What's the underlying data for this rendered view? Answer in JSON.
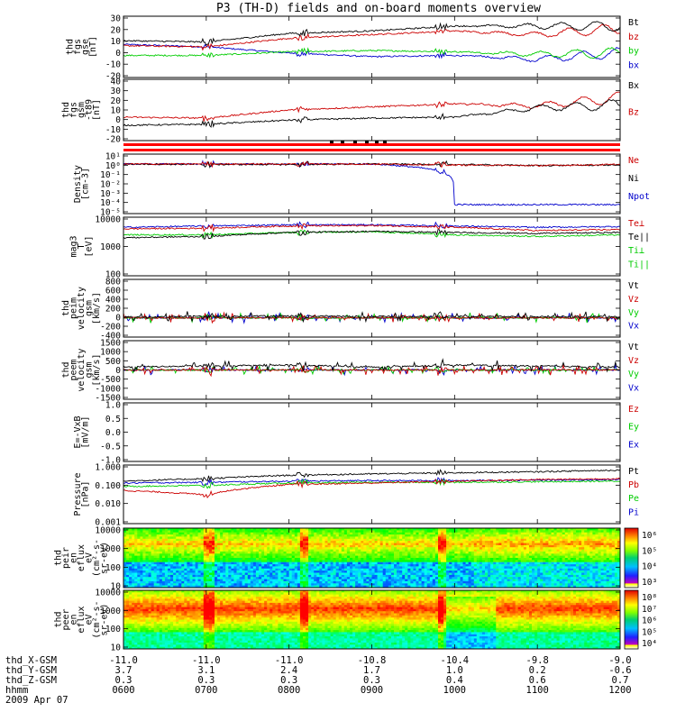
{
  "title": "P3 (TH-D) fields and on-board moments overview",
  "panels": [
    {
      "id": "fgs-gse",
      "ylabel": [
        "thd",
        "fgs",
        "gse",
        "[nT]"
      ],
      "yticks": [
        "30",
        "20",
        "10",
        "0",
        "-10",
        "-20"
      ],
      "legend": [
        {
          "text": "Bt",
          "color": "#000000"
        },
        {
          "text": "bz",
          "color": "#cc0000"
        },
        {
          "text": "by",
          "color": "#00cc00"
        },
        {
          "text": "bx",
          "color": "#0000cc"
        }
      ]
    },
    {
      "id": "fgs-gsm",
      "ylabel": [
        "thd",
        "fgs",
        "gsm",
        "-t89",
        "[nT]"
      ],
      "yticks": [
        "40",
        "30",
        "20",
        "10",
        "0",
        "-10",
        "-20"
      ],
      "legend": [
        {
          "text": "Bx",
          "color": "#000000"
        },
        {
          "text": "Bz",
          "color": "#cc0000"
        }
      ]
    },
    {
      "id": "density",
      "ylabel": [
        "Density",
        "[cm-3]"
      ],
      "yticks": [
        "10¹",
        "10⁰",
        "10⁻¹",
        "10⁻²",
        "10⁻³",
        "10⁻⁴",
        "10⁻⁵"
      ],
      "legend": [
        {
          "text": "Ne",
          "color": "#cc0000"
        },
        {
          "text": "Ni",
          "color": "#000000"
        },
        {
          "text": "Npot",
          "color": "#0000cc"
        }
      ]
    },
    {
      "id": "temp",
      "ylabel": [
        "mag3",
        "T",
        "[eV]"
      ],
      "yticks": [
        "10000",
        "1000",
        "100"
      ],
      "legend": [
        {
          "text": "Te⊥",
          "color": "#cc0000"
        },
        {
          "text": "Te||",
          "color": "#000000"
        },
        {
          "text": "Ti⊥",
          "color": "#00cc00"
        },
        {
          "text": "Ti||",
          "color": "#00cc00"
        }
      ]
    },
    {
      "id": "peim-vel",
      "ylabel": [
        "thd",
        "peim",
        "velocity",
        "gsm",
        "[km/s]"
      ],
      "yticks": [
        "800",
        "600",
        "400",
        "200",
        "0",
        "-200",
        "-400"
      ],
      "legend": [
        {
          "text": "Vt",
          "color": "#000000"
        },
        {
          "text": "Vz",
          "color": "#cc0000"
        },
        {
          "text": "Vy",
          "color": "#00cc00"
        },
        {
          "text": "Vx",
          "color": "#0000cc"
        }
      ]
    },
    {
      "id": "peem-vel",
      "ylabel": [
        "thd",
        "peem",
        "velocity",
        "gsm",
        "[km/s]"
      ],
      "yticks": [
        "1500",
        "1000",
        "500",
        "0",
        "-500",
        "-1000",
        "-1500"
      ],
      "legend": [
        {
          "text": "Vt",
          "color": "#000000"
        },
        {
          "text": "Vz",
          "color": "#cc0000"
        },
        {
          "text": "Vy",
          "color": "#00cc00"
        },
        {
          "text": "Vx",
          "color": "#0000cc"
        }
      ]
    },
    {
      "id": "efield",
      "ylabel": [
        "E=-VxB",
        "[mV/m]"
      ],
      "yticks": [
        "1.0",
        "0.5",
        "0.0",
        "-0.5",
        "-1.0"
      ],
      "legend": [
        {
          "text": "Ez",
          "color": "#cc0000"
        },
        {
          "text": "Ey",
          "color": "#00cc00"
        },
        {
          "text": "Ex",
          "color": "#0000cc"
        }
      ]
    },
    {
      "id": "pressure",
      "ylabel": [
        "Pressure",
        "[nPa]"
      ],
      "yticks": [
        "1.000",
        "0.100",
        "0.010",
        "0.001"
      ],
      "legend": [
        {
          "text": "Pt",
          "color": "#000000"
        },
        {
          "text": "Pb",
          "color": "#cc0000"
        },
        {
          "text": "Pe",
          "color": "#00cc00"
        },
        {
          "text": "Pi",
          "color": "#0000cc"
        }
      ]
    },
    {
      "id": "peir-spec",
      "ylabel": [
        "thd",
        "peir",
        "en",
        "eflux",
        "eV",
        "(cm²-s-",
        "sr-eV)"
      ],
      "yticks": [
        "10000",
        "1000",
        "100",
        "10"
      ],
      "cbticks": [
        "10⁶",
        "10⁵",
        "10⁴",
        "10³"
      ]
    },
    {
      "id": "peer-spec",
      "ylabel": [
        "thd",
        "peer",
        "en",
        "eflux",
        "eV",
        "(cm²-s-",
        "sr-eV)"
      ],
      "yticks": [
        "10000",
        "1000",
        "100",
        "10"
      ],
      "cbticks": [
        "10⁸",
        "10⁷",
        "10⁶",
        "10⁵",
        "10⁴"
      ]
    }
  ],
  "xaxis": {
    "rows": [
      {
        "label": "thd_X-GSM",
        "values": [
          "-11.0",
          "-11.0",
          "-11.0",
          "-10.8",
          "-10.4",
          "-9.8",
          "-9.0"
        ]
      },
      {
        "label": "thd_Y-GSM",
        "values": [
          "3.7",
          "3.1",
          "2.4",
          "1.7",
          "1.0",
          "0.2",
          "-0.6"
        ]
      },
      {
        "label": "thd_Z-GSM",
        "values": [
          "0.3",
          "0.3",
          "0.3",
          "0.3",
          "0.4",
          "0.6",
          "0.7"
        ]
      },
      {
        "label": "hhmm",
        "values": [
          "0600",
          "0700",
          "0800",
          "0900",
          "1000",
          "1100",
          "1200"
        ]
      }
    ],
    "date": "2009 Apr 07"
  },
  "chart_data": [
    {
      "type": "line",
      "title": "P3 (TH-D) fields and on-board moments overview",
      "ylabel": "thd fgs gse [nT]",
      "ylim": [
        -20,
        30
      ],
      "x": [
        "0600",
        "0700",
        "0800",
        "0900",
        "1000",
        "1100",
        "1200"
      ],
      "series": [
        {
          "name": "Bt",
          "values": [
            10,
            9,
            16,
            18,
            22,
            22,
            22
          ]
        },
        {
          "name": "bz",
          "values": [
            6,
            5,
            12,
            15,
            18,
            15,
            20
          ]
        },
        {
          "name": "by",
          "values": [
            -2,
            -2,
            1,
            2,
            1,
            -1,
            0
          ]
        },
        {
          "name": "bx",
          "values": [
            7,
            5,
            0,
            -3,
            -2,
            -5,
            0
          ]
        }
      ]
    },
    {
      "type": "line",
      "ylabel": "thd fgs gsm-t89 [nT]",
      "ylim": [
        -20,
        40
      ],
      "x": [
        "0600",
        "0700",
        "0800",
        "0900",
        "1000",
        "1100",
        "1200"
      ],
      "series": [
        {
          "name": "Bx",
          "values": [
            -5,
            -4,
            0,
            2,
            3,
            12,
            15
          ]
        },
        {
          "name": "Bz",
          "values": [
            3,
            2,
            10,
            13,
            16,
            14,
            22
          ]
        }
      ]
    },
    {
      "type": "line",
      "ylabel": "Density [cm-3]",
      "ylim": [
        1e-05,
        10
      ],
      "log": true,
      "x": [
        "0600",
        "0700",
        "0800",
        "0900",
        "1000",
        "1100",
        "1200"
      ],
      "series": [
        {
          "name": "Ne",
          "values": [
            1,
            1,
            1,
            1,
            0.8,
            0.7,
            0.9
          ]
        },
        {
          "name": "Ni",
          "values": [
            1,
            0.9,
            0.9,
            1,
            0.9,
            0.7,
            0.8
          ]
        },
        {
          "name": "Npot",
          "values": [
            1,
            1,
            1,
            1,
            8e-05,
            8e-05,
            8e-05
          ]
        }
      ]
    },
    {
      "type": "line",
      "ylabel": "mag3 T [eV]",
      "ylim": [
        100,
        10000
      ],
      "log": true,
      "x": [
        "0600",
        "0700",
        "0800",
        "0900",
        "1000",
        "1100",
        "1200"
      ],
      "series": [
        {
          "name": "Te⊥",
          "values": [
            4000,
            4200,
            5000,
            5200,
            4500,
            3500,
            3800
          ]
        },
        {
          "name": "Te||",
          "values": [
            2000,
            2200,
            3000,
            3300,
            3000,
            2800,
            3000
          ]
        },
        {
          "name": "Ti⊥",
          "values": [
            4500,
            5000,
            5500,
            5500,
            5000,
            4500,
            4800
          ]
        },
        {
          "name": "Ti||",
          "values": [
            2500,
            2500,
            3000,
            3200,
            2500,
            2200,
            2500
          ]
        }
      ]
    },
    {
      "type": "line",
      "ylabel": "thd peim velocity gsm [km/s]",
      "ylim": [
        -400,
        800
      ],
      "x": [
        "0600",
        "0700",
        "0800",
        "0900",
        "1000",
        "1100",
        "1200"
      ],
      "series": [
        {
          "name": "Vt",
          "values": [
            20,
            30,
            40,
            30,
            30,
            25,
            25
          ]
        },
        {
          "name": "Vz",
          "values": [
            0,
            0,
            0,
            0,
            0,
            0,
            0
          ]
        },
        {
          "name": "Vy",
          "values": [
            0,
            0,
            0,
            0,
            0,
            0,
            0
          ]
        },
        {
          "name": "Vx",
          "values": [
            0,
            0,
            0,
            0,
            0,
            0,
            0
          ]
        }
      ]
    },
    {
      "type": "line",
      "ylabel": "thd peem velocity gsm [km/s]",
      "ylim": [
        -1500,
        1500
      ],
      "x": [
        "0600",
        "0700",
        "0800",
        "0900",
        "1000",
        "1100",
        "1200"
      ],
      "series": [
        {
          "name": "Vt",
          "values": [
            150,
            200,
            250,
            150,
            250,
            200,
            150
          ]
        },
        {
          "name": "Vz",
          "values": [
            0,
            0,
            0,
            0,
            0,
            0,
            0
          ]
        },
        {
          "name": "Vy",
          "values": [
            0,
            0,
            0,
            0,
            0,
            0,
            0
          ]
        },
        {
          "name": "Vx",
          "values": [
            0,
            0,
            0,
            0,
            0,
            0,
            0
          ]
        }
      ]
    },
    {
      "type": "line",
      "ylabel": "E=-VxB [mV/m]",
      "ylim": [
        -1,
        1
      ],
      "series": []
    },
    {
      "type": "line",
      "ylabel": "Pressure [nPa]",
      "ylim": [
        0.001,
        1
      ],
      "log": true,
      "x": [
        "0600",
        "0700",
        "0800",
        "0900",
        "1000",
        "1100",
        "1200"
      ],
      "series": [
        {
          "name": "Pt",
          "values": [
            0.15,
            0.2,
            0.3,
            0.35,
            0.4,
            0.45,
            0.55
          ]
        },
        {
          "name": "Pb",
          "values": [
            0.05,
            0.03,
            0.1,
            0.12,
            0.15,
            0.18,
            0.2
          ]
        },
        {
          "name": "Pe",
          "values": [
            0.08,
            0.09,
            0.12,
            0.13,
            0.13,
            0.14,
            0.15
          ]
        },
        {
          "name": "Pi",
          "values": [
            0.12,
            0.13,
            0.15,
            0.16,
            0.16,
            0.17,
            0.18
          ]
        }
      ]
    },
    {
      "type": "heatmap",
      "ylabel": "thd peir en eflux eV",
      "ylim": [
        10,
        20000
      ],
      "colorbar": [
        1000,
        1000000
      ],
      "log": true
    },
    {
      "type": "heatmap",
      "ylabel": "thd peer en eflux eV",
      "ylim": [
        10,
        20000
      ],
      "colorbar": [
        10000,
        100000000
      ],
      "log": true
    }
  ]
}
